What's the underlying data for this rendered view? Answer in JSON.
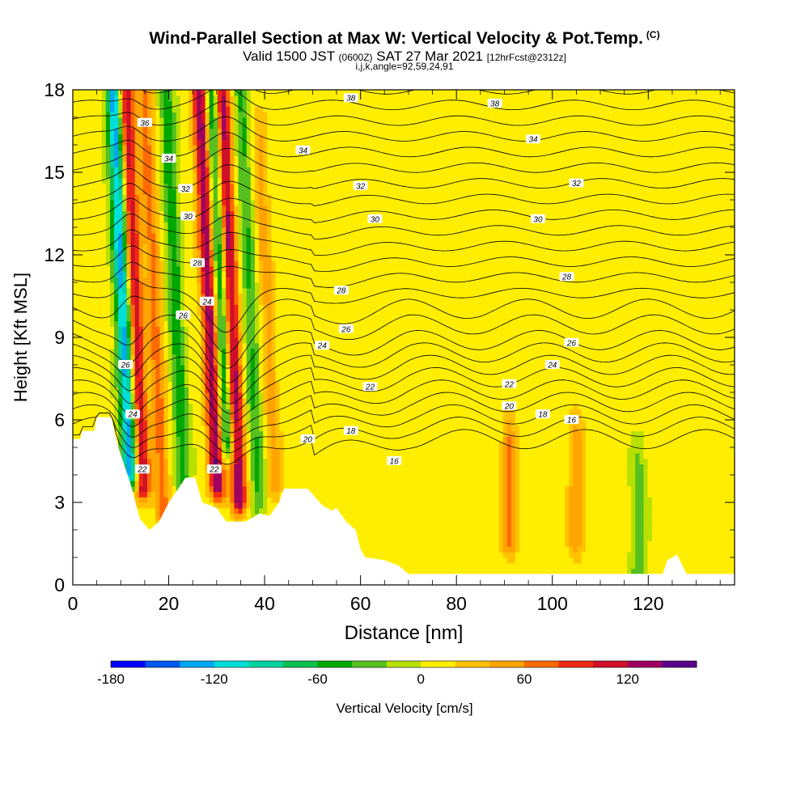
{
  "header": {
    "title": "Wind-Parallel Section at Max W: Vertical Velocity & Pot.Temp.",
    "title_mark": "(C)",
    "valid_prefix": "Valid 1500 JST",
    "valid_zulu": "(0600Z)",
    "valid_date": "SAT 27 Mar 2021",
    "valid_fcst": "[12hrFcst@2312z]",
    "section_info": "i,j,k,angle=92,59,24,91"
  },
  "chart_data": {
    "type": "heatmap",
    "xlabel": "Distance [nm]",
    "ylabel": "Height [Kft MSL]",
    "xlim": [
      0,
      138
    ],
    "ylim": [
      0,
      18
    ],
    "x_ticks": [
      0,
      20,
      40,
      60,
      80,
      100,
      120
    ],
    "y_ticks": [
      0,
      3,
      6,
      9,
      12,
      15,
      18
    ],
    "colorbar": {
      "label": "Vertical Velocity [cm/s]",
      "ticks": [
        -180,
        -120,
        -60,
        0,
        60,
        120
      ],
      "min": -180,
      "max": 140,
      "bins": 16,
      "colors": [
        "#0000ff",
        "#0057f0",
        "#00a7f5",
        "#00e0d8",
        "#00d2a0",
        "#10c050",
        "#00a800",
        "#55c020",
        "#b8e000",
        "#ffee00",
        "#ffc200",
        "#ffa400",
        "#ff6a00",
        "#f02818",
        "#d0102a",
        "#a00060"
      ],
      "top_color": "#5a0088"
    },
    "velocity_features": [
      {
        "x": 10.5,
        "z_from": 4.0,
        "z_to": 18,
        "w": -140,
        "note": "updraft/downdraft couplet, lower west"
      },
      {
        "x": 13.0,
        "z_from": 3.5,
        "z_to": 18,
        "w": 110
      },
      {
        "x": 17.0,
        "z_from": 2.5,
        "z_to": 18,
        "w": 60
      },
      {
        "x": 21.5,
        "z_from": 3.0,
        "z_to": 18,
        "w": -60
      },
      {
        "x": 28.5,
        "z_from": 3.5,
        "z_to": 18,
        "w": 130
      },
      {
        "x": 33.0,
        "z_from": 3.0,
        "z_to": 18,
        "w": 130
      },
      {
        "x": 31.0,
        "z_from": 5.0,
        "z_to": 18,
        "w": -90
      },
      {
        "x": 37.0,
        "z_from": 3.0,
        "z_to": 18,
        "w": -50
      },
      {
        "x": 40.5,
        "z_from": 3.5,
        "z_to": 16,
        "w": 40
      },
      {
        "x": 91.0,
        "z_from": 1.5,
        "z_to": 5,
        "w": 60
      },
      {
        "x": 105.0,
        "z_from": 1.5,
        "z_to": 5,
        "w": 50
      },
      {
        "x": 118.0,
        "z_from": 0.5,
        "z_to": 4,
        "w": -40
      }
    ],
    "contour_labels": [
      {
        "text": "36",
        "x": 15,
        "z": 16.8
      },
      {
        "text": "34",
        "x": 20,
        "z": 15.5
      },
      {
        "text": "32",
        "x": 23.5,
        "z": 14.4
      },
      {
        "text": "30",
        "x": 24,
        "z": 13.4
      },
      {
        "text": "28",
        "x": 26,
        "z": 11.7
      },
      {
        "text": "26",
        "x": 23,
        "z": 9.8
      },
      {
        "text": "24",
        "x": 28,
        "z": 10.3
      },
      {
        "text": "26",
        "x": 11,
        "z": 8.0
      },
      {
        "text": "24",
        "x": 12.5,
        "z": 6.2
      },
      {
        "text": "22",
        "x": 14.5,
        "z": 4.2
      },
      {
        "text": "22",
        "x": 29.5,
        "z": 4.2
      },
      {
        "text": "38",
        "x": 58,
        "z": 17.7
      },
      {
        "text": "34",
        "x": 48,
        "z": 15.8
      },
      {
        "text": "32",
        "x": 60,
        "z": 14.5
      },
      {
        "text": "30",
        "x": 63,
        "z": 13.3
      },
      {
        "text": "28",
        "x": 56,
        "z": 10.7
      },
      {
        "text": "26",
        "x": 57,
        "z": 9.3
      },
      {
        "text": "24",
        "x": 52,
        "z": 8.7
      },
      {
        "text": "22",
        "x": 62,
        "z": 7.2
      },
      {
        "text": "20",
        "x": 49,
        "z": 5.3
      },
      {
        "text": "18",
        "x": 58,
        "z": 5.6
      },
      {
        "text": "16",
        "x": 67,
        "z": 4.5
      },
      {
        "text": "38",
        "x": 88,
        "z": 17.5
      },
      {
        "text": "34",
        "x": 96,
        "z": 16.2
      },
      {
        "text": "32",
        "x": 105,
        "z": 14.6
      },
      {
        "text": "30",
        "x": 97,
        "z": 13.3
      },
      {
        "text": "28",
        "x": 103,
        "z": 11.2
      },
      {
        "text": "26",
        "x": 104,
        "z": 8.8
      },
      {
        "text": "24",
        "x": 100,
        "z": 8.0
      },
      {
        "text": "22",
        "x": 91,
        "z": 7.3
      },
      {
        "text": "20",
        "x": 91,
        "z": 6.5
      },
      {
        "text": "18",
        "x": 98,
        "z": 6.2
      },
      {
        "text": "16",
        "x": 104,
        "z": 6.0
      }
    ],
    "terrain": [
      [
        0,
        5.3
      ],
      [
        1.5,
        5.3
      ],
      [
        2,
        5.6
      ],
      [
        4.5,
        5.6
      ],
      [
        5,
        6.1
      ],
      [
        8,
        6.1
      ],
      [
        9.5,
        5.0
      ],
      [
        12,
        3.7
      ],
      [
        14,
        2.4
      ],
      [
        16,
        2.0
      ],
      [
        18,
        2.3
      ],
      [
        20,
        3.0
      ],
      [
        22,
        3.5
      ],
      [
        23.5,
        3.9
      ],
      [
        25.5,
        3.9
      ],
      [
        27,
        3.0
      ],
      [
        30,
        2.8
      ],
      [
        32,
        2.3
      ],
      [
        36,
        2.3
      ],
      [
        39,
        2.6
      ],
      [
        41,
        2.5
      ],
      [
        43,
        3.0
      ],
      [
        44,
        3.5
      ],
      [
        49,
        3.5
      ],
      [
        52,
        2.9
      ],
      [
        54,
        2.7
      ],
      [
        55,
        2.8
      ],
      [
        57,
        2.3
      ],
      [
        59,
        2.0
      ],
      [
        60,
        1.3
      ],
      [
        61,
        1.0
      ],
      [
        65,
        0.9
      ],
      [
        68,
        0.7
      ],
      [
        70,
        0.4
      ],
      [
        74,
        0.4
      ],
      [
        123,
        0.4
      ],
      [
        124,
        0.9
      ],
      [
        126,
        1.1
      ],
      [
        128,
        0.4
      ],
      [
        138,
        0.4
      ]
    ]
  }
}
